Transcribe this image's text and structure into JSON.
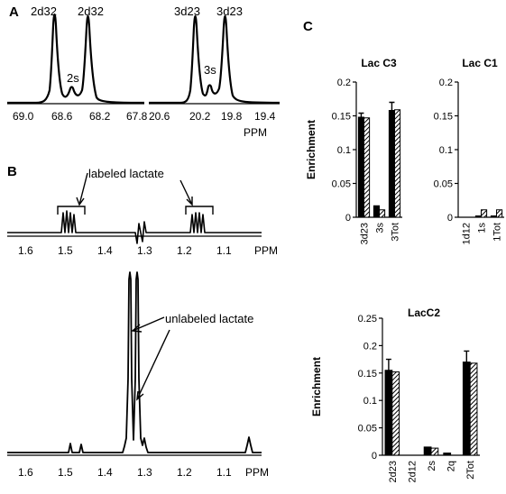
{
  "panels": {
    "a": {
      "label": "A",
      "left": {
        "peaks": [
          "2d32",
          "2s",
          "2d32"
        ],
        "ticks": [
          "69.0",
          "68.6",
          "68.2",
          "67.8"
        ]
      },
      "right": {
        "peaks": [
          "3d23",
          "3s",
          "3d23"
        ],
        "ticks": [
          "20.6",
          "20.2",
          "19.8",
          "19.4"
        ]
      },
      "axis_unit": "PPM"
    },
    "b": {
      "label": "B",
      "top_annotation": "labeled lactate",
      "bottom_annotation": "unlabeled lactate",
      "ticks": [
        "1.6",
        "1.5",
        "1.4",
        "1.3",
        "1.2",
        "1.1"
      ],
      "axis_unit": "PPM"
    },
    "c": {
      "label": "C"
    }
  },
  "chart_data": [
    {
      "type": "bar",
      "title": "Lac C3",
      "ylabel": "Enrichment",
      "categories": [
        "3d23",
        "3s",
        "3Tot"
      ],
      "ylim": [
        0,
        0.2
      ],
      "yticks": [
        "0",
        "0.05",
        "0.1",
        "0.15",
        "0.2"
      ],
      "series": [
        {
          "style": "solid",
          "values": [
            0.148,
            0.017,
            0.158
          ],
          "errors": [
            0.006,
            0.0,
            0.012
          ]
        },
        {
          "style": "hatched",
          "values": [
            0.147,
            0.011,
            0.159
          ],
          "errors": [
            0.0,
            0.0,
            0.0
          ]
        }
      ]
    },
    {
      "type": "bar",
      "title": "Lac C1",
      "categories": [
        "1d12",
        "1s",
        "1Tot"
      ],
      "ylim": [
        0,
        0.2
      ],
      "yticks": [
        "0",
        "0.05",
        "0.1",
        "0.15",
        "0.2"
      ],
      "series": [
        {
          "style": "solid",
          "values": [
            0.0,
            0.002,
            0.002
          ],
          "errors": [
            0.0,
            0.0,
            0.0
          ]
        },
        {
          "style": "hatched",
          "values": [
            0.0,
            0.011,
            0.011
          ],
          "errors": [
            0.0,
            0.0,
            0.0
          ]
        }
      ]
    },
    {
      "type": "bar",
      "title": "LacC2",
      "ylabel": "Enrichment",
      "categories": [
        "2d23",
        "2d12",
        "2s",
        "2q",
        "2Tot"
      ],
      "ylim": [
        0,
        0.25
      ],
      "yticks": [
        "0",
        "0.05",
        "0.1",
        "0.15",
        "0.2",
        "0.25"
      ],
      "series": [
        {
          "style": "solid",
          "values": [
            0.155,
            0.0,
            0.015,
            0.004,
            0.17
          ],
          "errors": [
            0.02,
            0.0,
            0.0,
            0.0,
            0.02
          ]
        },
        {
          "style": "hatched",
          "values": [
            0.152,
            0.0,
            0.013,
            0.0,
            0.168
          ],
          "errors": [
            0.0,
            0.0,
            0.0,
            0.0,
            0.0
          ]
        }
      ]
    }
  ]
}
